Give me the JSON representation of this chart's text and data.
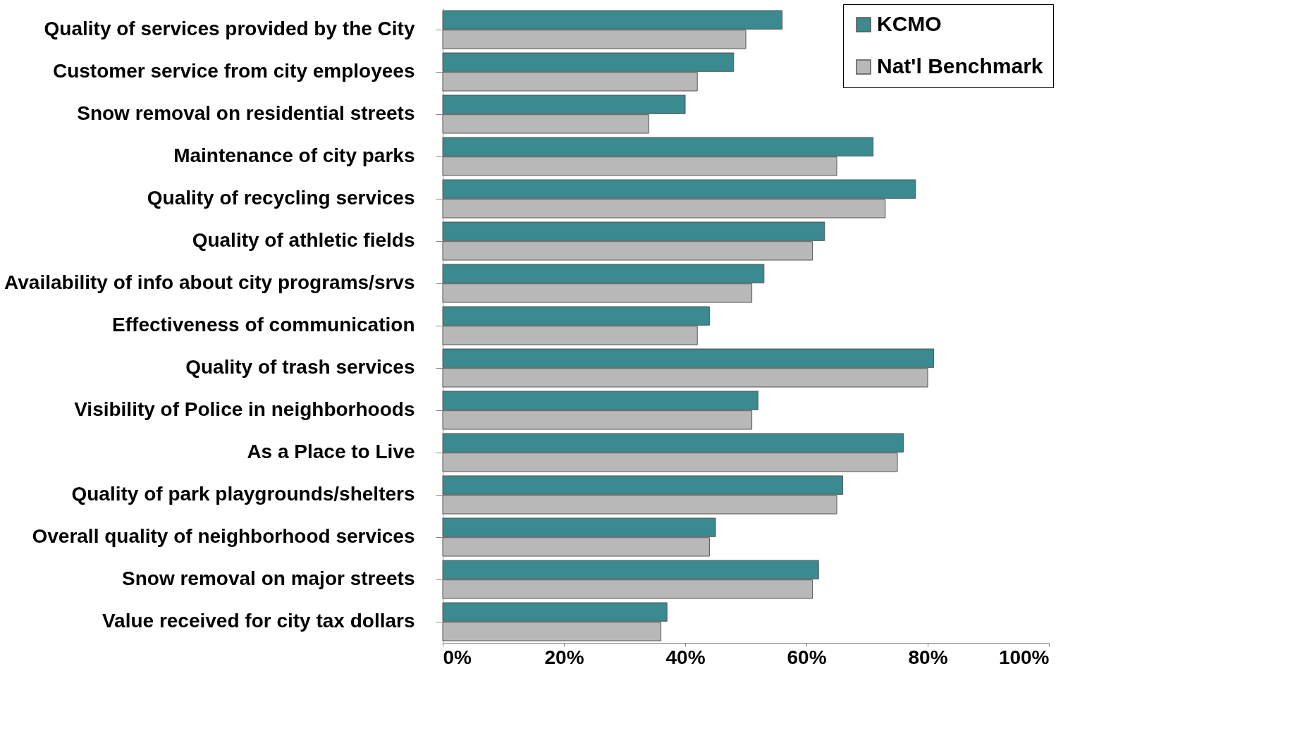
{
  "chart_data": {
    "type": "bar",
    "orientation": "horizontal",
    "categories": [
      "Quality of services provided by the City",
      "Customer service from city employees",
      "Snow removal on residential streets",
      "Maintenance of city parks",
      "Quality of recycling services",
      "Quality of athletic fields",
      "Availability of info about city programs/srvs",
      "Effectiveness of communication",
      "Quality of trash services",
      "Visibility of Police in neighborhoods",
      "As a Place to Live",
      "Quality of park playgrounds/shelters",
      "Overall quality of neighborhood services",
      "Snow removal on major streets",
      "Value received for city tax dollars"
    ],
    "series": [
      {
        "name": "KCMO",
        "color": "#3a8a8f",
        "values": [
          56,
          48,
          40,
          71,
          78,
          63,
          53,
          44,
          81,
          52,
          76,
          66,
          45,
          62,
          37
        ]
      },
      {
        "name": "Nat'l Benchmark",
        "color": "#b8b8b8",
        "values": [
          50,
          42,
          34,
          65,
          73,
          61,
          51,
          42,
          80,
          51,
          75,
          65,
          44,
          61,
          36
        ]
      }
    ],
    "xlim": [
      0,
      100
    ],
    "xticks": [
      {
        "value": 0,
        "label": "0%"
      },
      {
        "value": 20,
        "label": "20%"
      },
      {
        "value": 40,
        "label": "40%"
      },
      {
        "value": 60,
        "label": "60%"
      },
      {
        "value": 80,
        "label": "80%"
      },
      {
        "value": 100,
        "label": "100%"
      }
    ],
    "grid": false,
    "legend": "top right"
  }
}
